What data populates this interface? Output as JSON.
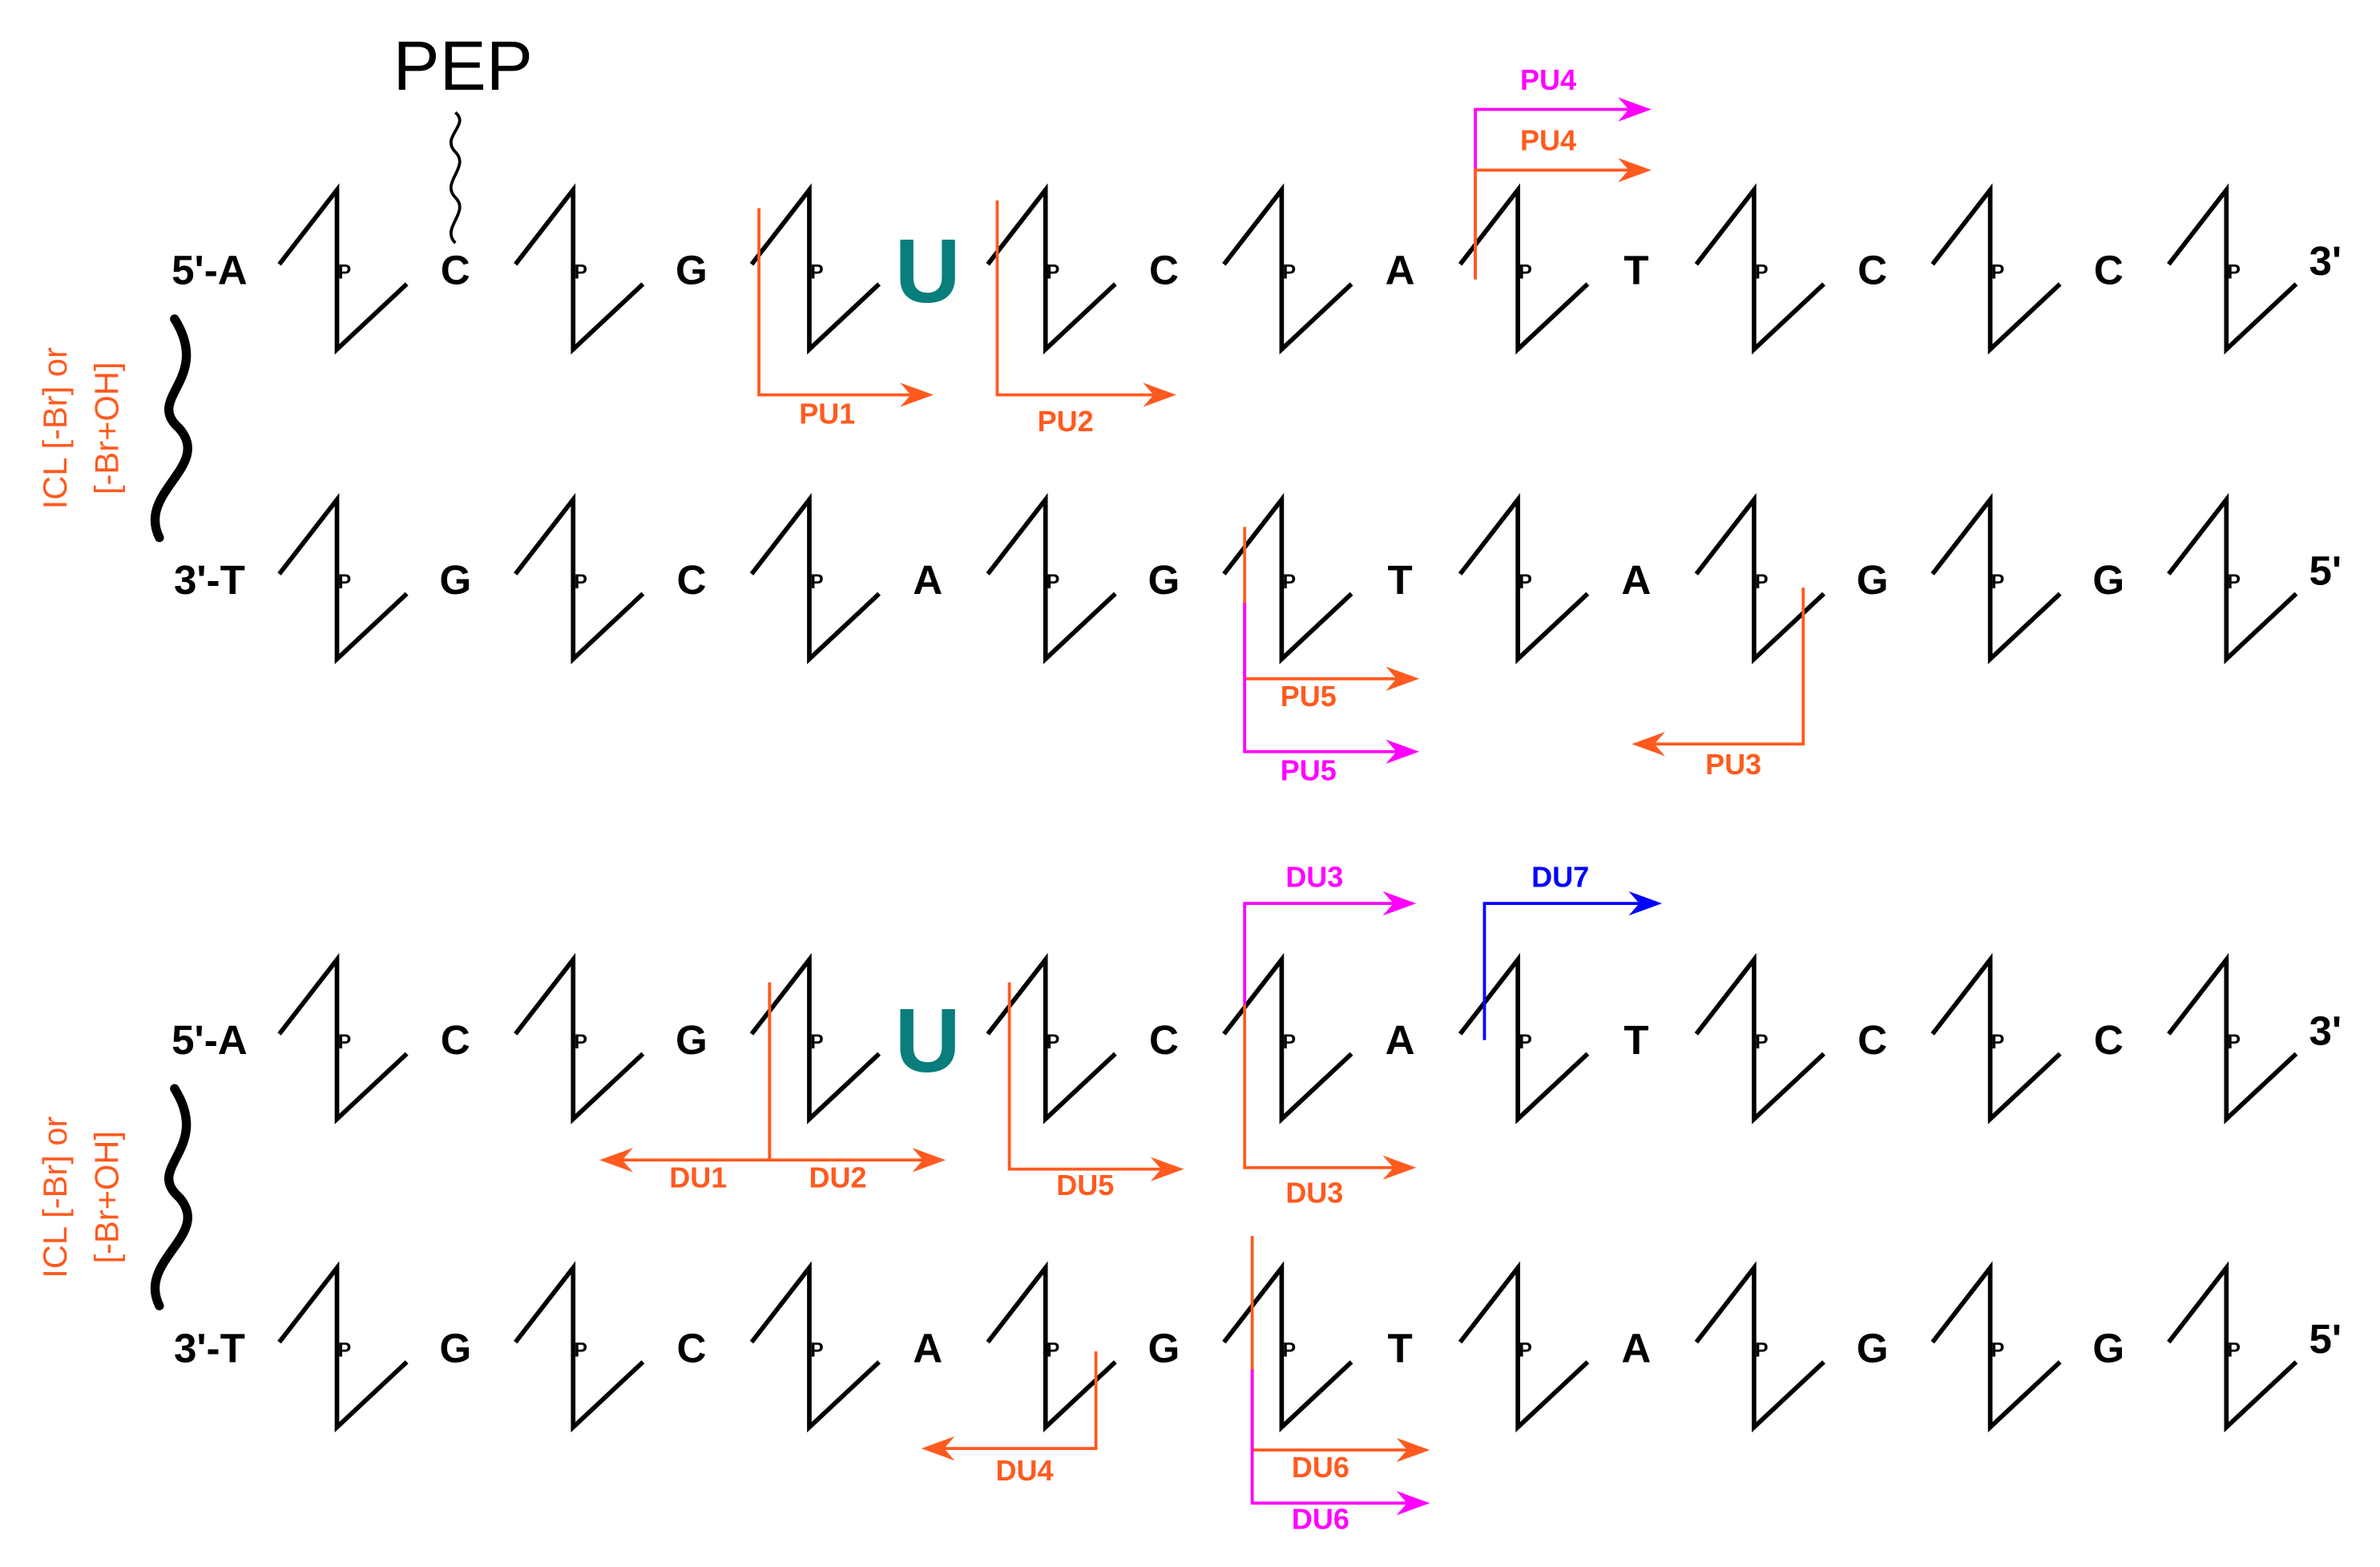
{
  "pep_label": "PEP",
  "phosphate_label": "P",
  "panels": [
    {
      "linker_label": [
        "ICL [-Br] or",
        "[-Br+OH]"
      ],
      "top_strand": {
        "start": "5'-A",
        "bases": [
          "C",
          "G",
          "U",
          "C",
          "A",
          "T",
          "C",
          "C"
        ],
        "end": "3'"
      },
      "bottom_strand": {
        "start": "3'-T",
        "bases": [
          "G",
          "C",
          "A",
          "G",
          "T",
          "A",
          "G",
          "G"
        ],
        "end": "5'"
      },
      "primers": [
        {
          "label": "PU1",
          "color": "#ff5a1f"
        },
        {
          "label": "PU2",
          "color": "#ff5a1f"
        },
        {
          "label": "PU4",
          "color": "#ff00ff"
        },
        {
          "label": "PU4",
          "color": "#ff5a1f"
        },
        {
          "label": "PU5",
          "color": "#ff5a1f"
        },
        {
          "label": "PU5",
          "color": "#ff00ff"
        },
        {
          "label": "PU3",
          "color": "#ff5a1f"
        }
      ]
    },
    {
      "linker_label": [
        "ICL [-Br] or",
        "[-Br+OH]"
      ],
      "top_strand": {
        "start": "5'-A",
        "bases": [
          "C",
          "G",
          "U",
          "C",
          "A",
          "T",
          "C",
          "C"
        ],
        "end": "3'"
      },
      "bottom_strand": {
        "start": "3'-T",
        "bases": [
          "G",
          "C",
          "A",
          "G",
          "T",
          "A",
          "G",
          "G"
        ],
        "end": "5'"
      },
      "primers": [
        {
          "label": "DU3",
          "color": "#ff00ff"
        },
        {
          "label": "DU7",
          "color": "#0000ff"
        },
        {
          "label": "DU1",
          "color": "#ff5a1f"
        },
        {
          "label": "DU2",
          "color": "#ff5a1f"
        },
        {
          "label": "DU5",
          "color": "#ff5a1f"
        },
        {
          "label": "DU3",
          "color": "#ff5a1f"
        },
        {
          "label": "DU4",
          "color": "#ff5a1f"
        },
        {
          "label": "DU6",
          "color": "#ff5a1f"
        },
        {
          "label": "DU6",
          "color": "#ff00ff"
        }
      ]
    }
  ]
}
